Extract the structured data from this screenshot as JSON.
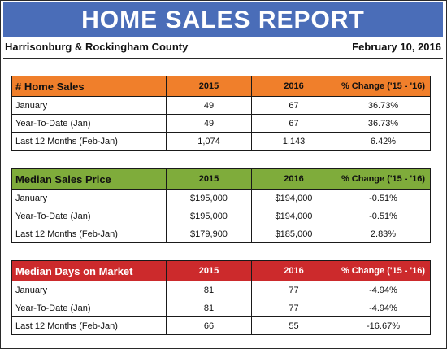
{
  "title": "HOME SALES REPORT",
  "region": "Harrisonburg & Rockingham County",
  "date": "February 10, 2016",
  "tables": [
    {
      "header": [
        "# Home Sales",
        "2015",
        "2016",
        "% Change ('15 - '16)"
      ],
      "rows": [
        [
          "January",
          "49",
          "67",
          "36.73%"
        ],
        [
          "Year-To-Date (Jan)",
          "49",
          "67",
          "36.73%"
        ],
        [
          "Last 12 Months (Feb-Jan)",
          "1,074",
          "1,143",
          "6.42%"
        ]
      ]
    },
    {
      "header": [
        "Median Sales Price",
        "2015",
        "2016",
        "% Change ('15 - '16)"
      ],
      "rows": [
        [
          "January",
          "$195,000",
          "$194,000",
          "-0.51%"
        ],
        [
          "Year-To-Date (Jan)",
          "$195,000",
          "$194,000",
          "-0.51%"
        ],
        [
          "Last 12 Months (Feb-Jan)",
          "$179,900",
          "$185,000",
          "2.83%"
        ]
      ]
    },
    {
      "header": [
        "Median Days on Market",
        "2015",
        "2016",
        "% Change ('15 - '16)"
      ],
      "rows": [
        [
          "January",
          "81",
          "77",
          "-4.94%"
        ],
        [
          "Year-To-Date (Jan)",
          "81",
          "77",
          "-4.94%"
        ],
        [
          "Last 12 Months (Feb-Jan)",
          "66",
          "55",
          "-16.67%"
        ]
      ]
    }
  ],
  "colors": {
    "banner": "#4a6db8",
    "home_sales_header": "#f07f2b",
    "median_price_header": "#7fac3b",
    "days_on_market_header": "#cc2a2c"
  }
}
